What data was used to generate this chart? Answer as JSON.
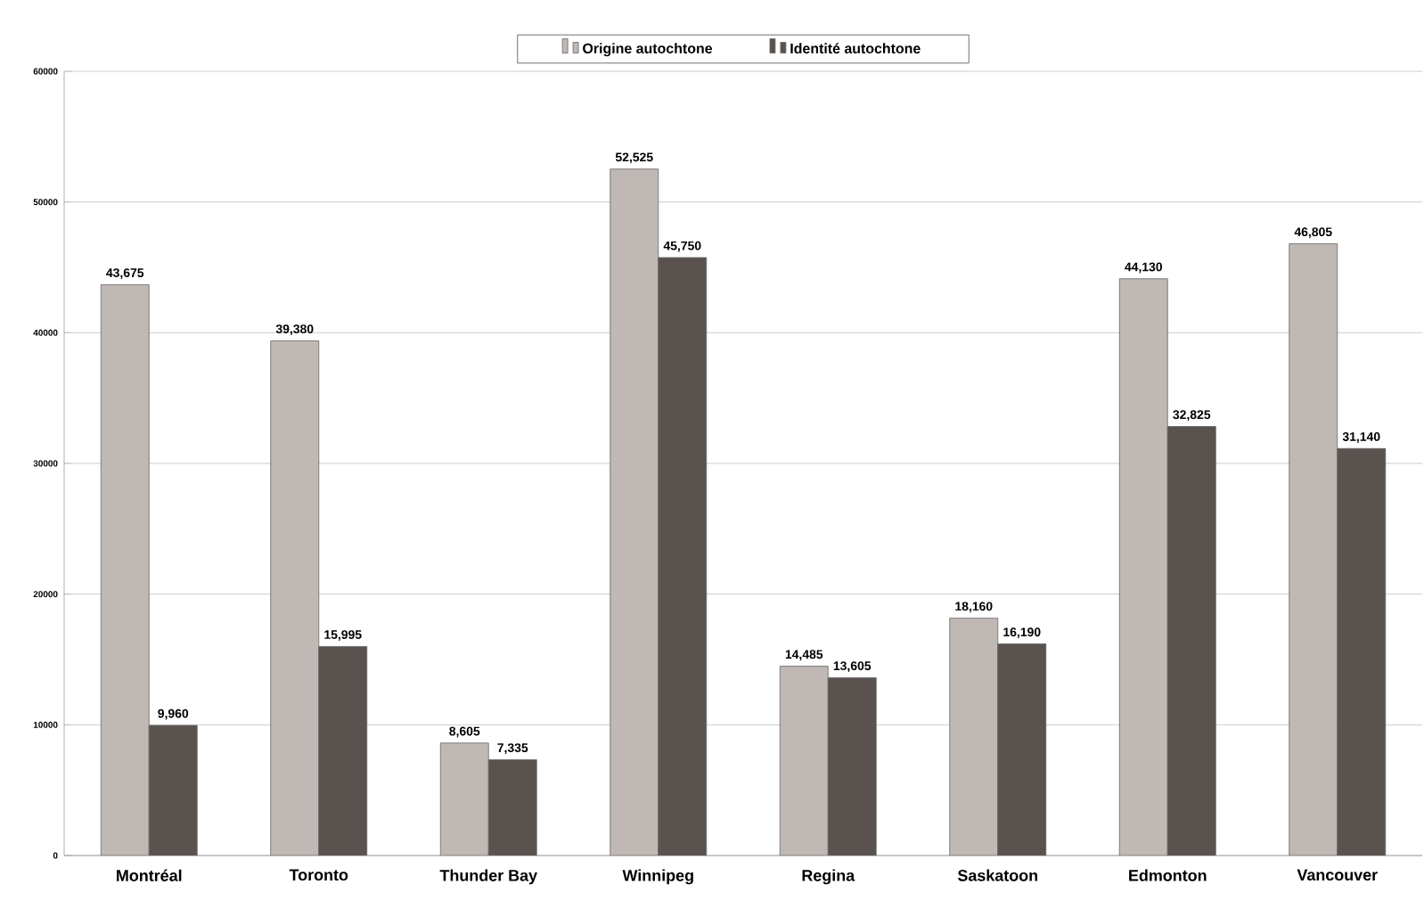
{
  "chart_data": {
    "type": "bar",
    "categories": [
      "Montréal",
      "Toronto",
      "Thunder Bay",
      "Winnipeg",
      "Regina",
      "Saskatoon",
      "Edmonton",
      "Vancouver"
    ],
    "series": [
      {
        "name": "Origine autochtone",
        "color": "#c0b8b4",
        "values": [
          43675,
          39380,
          8605,
          52525,
          14485,
          18160,
          44130,
          46805
        ],
        "value_labels": [
          "43,675",
          "39,380",
          "8,605",
          "52,525",
          "14,485",
          "18,160",
          "44,130",
          "46,805"
        ]
      },
      {
        "name": "Identité autochtone",
        "color": "#5a524e",
        "values": [
          9960,
          15995,
          7335,
          45750,
          13605,
          16190,
          32825,
          31140
        ],
        "value_labels": [
          "9,960",
          "15,995",
          "7,335",
          "45,750",
          "13,605",
          "16,190",
          "32,825",
          "31,140"
        ]
      }
    ],
    "ylim": [
      0,
      60000
    ],
    "yticks": [
      0,
      10000,
      20000,
      30000,
      40000,
      50000,
      60000
    ],
    "grid": "y",
    "legend": "top"
  }
}
